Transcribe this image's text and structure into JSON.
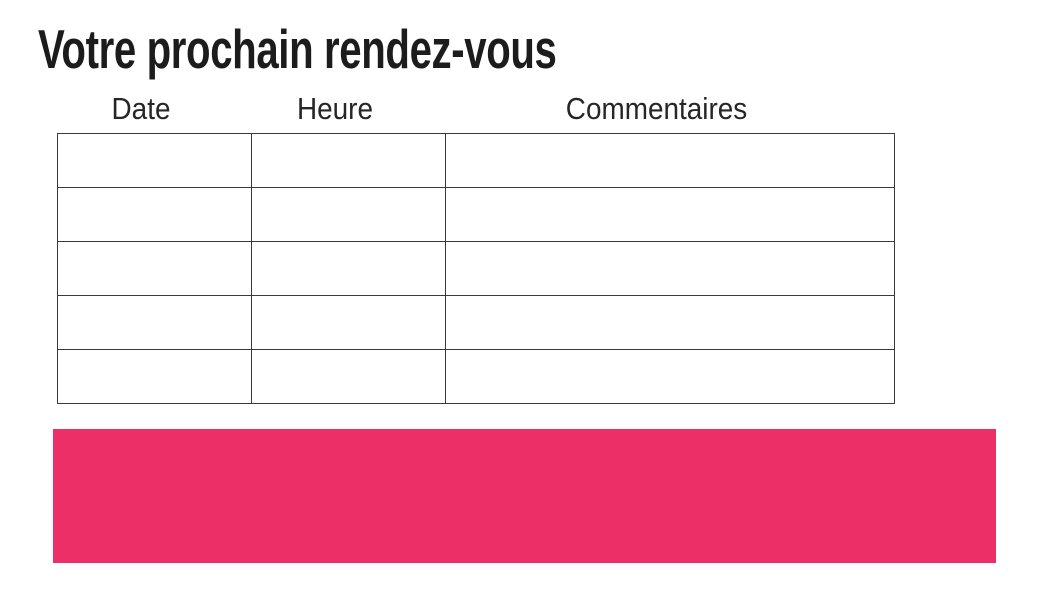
{
  "title": "Votre prochain rendez-vous",
  "table": {
    "headers": [
      "Date",
      "Heure",
      "Commentaires"
    ],
    "rows": [
      [
        "",
        "",
        ""
      ],
      [
        "",
        "",
        ""
      ],
      [
        "",
        "",
        ""
      ],
      [
        "",
        "",
        ""
      ],
      [
        "",
        "",
        ""
      ]
    ]
  },
  "banner": {
    "text": ""
  },
  "colors": {
    "accent": "#ED2F68",
    "table_border": "#3A3A3A",
    "title_text": "#1C1C1C",
    "header_text": "#262626"
  }
}
